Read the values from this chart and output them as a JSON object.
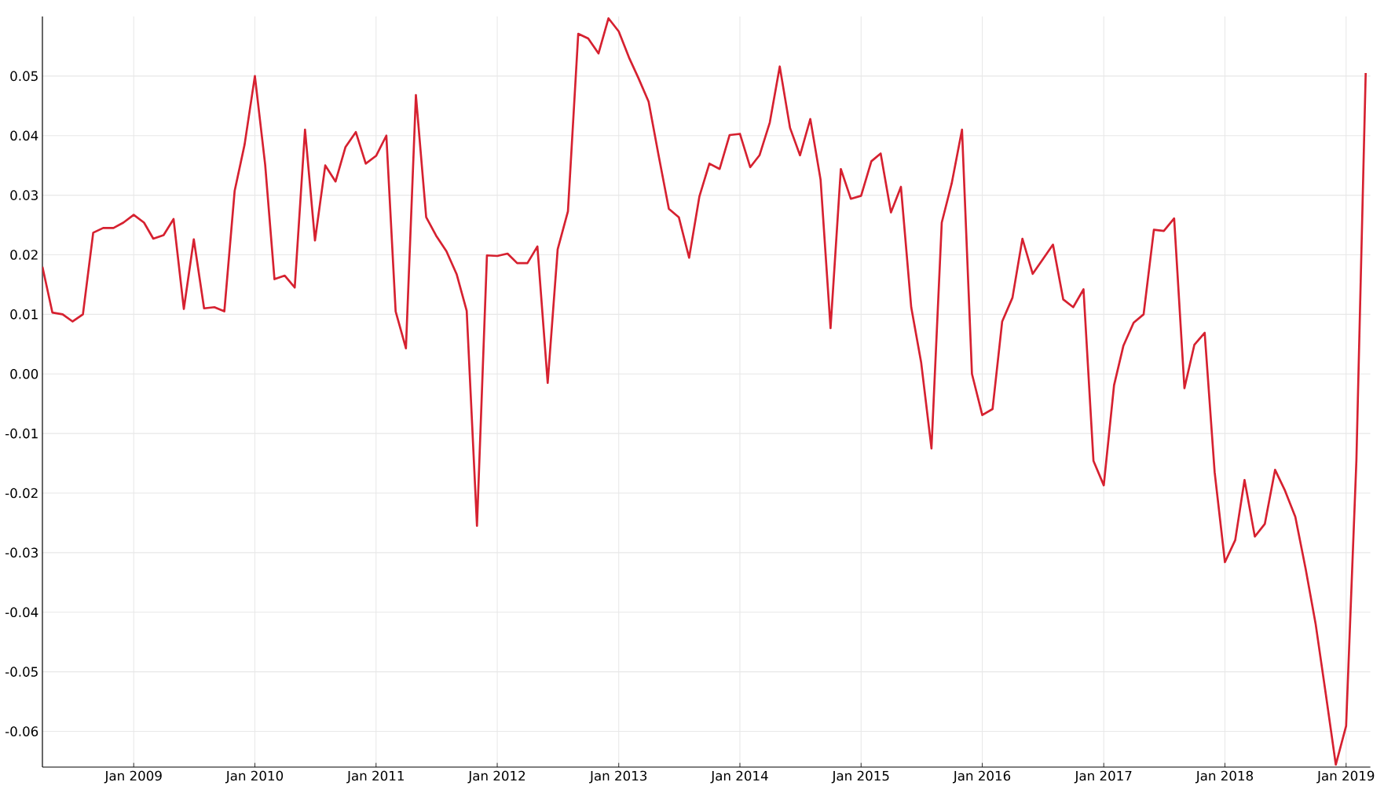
{
  "chart_data": {
    "type": "line",
    "color": "#d62130",
    "grid": true,
    "x": [
      "2008-04",
      "2008-05",
      "2008-06",
      "2008-07",
      "2008-08",
      "2008-09",
      "2008-10",
      "2008-11",
      "2008-12",
      "2009-01",
      "2009-02",
      "2009-03",
      "2009-04",
      "2009-05",
      "2009-06",
      "2009-07",
      "2009-08",
      "2009-09",
      "2009-10",
      "2009-11",
      "2009-12",
      "2010-01",
      "2010-02",
      "2010-03",
      "2010-04",
      "2010-05",
      "2010-06",
      "2010-07",
      "2010-08",
      "2010-09",
      "2010-10",
      "2010-11",
      "2010-12",
      "2011-01",
      "2011-02",
      "2011-03",
      "2011-04",
      "2011-05",
      "2011-06",
      "2011-07",
      "2011-08",
      "2011-09",
      "2011-10",
      "2011-11",
      "2011-12",
      "2012-01",
      "2012-02",
      "2012-03",
      "2012-04",
      "2012-05",
      "2012-06",
      "2012-07",
      "2012-08",
      "2012-09",
      "2012-10",
      "2012-11",
      "2012-12",
      "2013-01",
      "2013-02",
      "2013-03",
      "2013-04",
      "2013-05",
      "2013-06",
      "2013-07",
      "2013-08",
      "2013-09",
      "2013-10",
      "2013-11",
      "2013-12",
      "2014-01",
      "2014-02",
      "2014-03",
      "2014-04",
      "2014-05",
      "2014-06",
      "2014-07",
      "2014-08",
      "2014-09",
      "2014-10",
      "2014-11",
      "2014-12",
      "2015-01",
      "2015-02",
      "2015-03",
      "2015-04",
      "2015-05",
      "2015-06",
      "2015-07",
      "2015-08",
      "2015-09",
      "2015-10",
      "2015-11",
      "2015-12",
      "2016-01",
      "2016-02",
      "2016-03",
      "2016-04",
      "2016-05",
      "2016-06",
      "2016-07",
      "2016-08",
      "2016-09",
      "2016-10",
      "2016-11",
      "2016-12",
      "2017-01",
      "2017-02",
      "2017-03",
      "2017-04",
      "2017-05",
      "2017-06",
      "2017-07",
      "2017-08",
      "2017-09",
      "2017-10",
      "2017-11",
      "2017-12",
      "2018-01",
      "2018-02",
      "2018-03",
      "2018-04",
      "2018-05",
      "2018-06",
      "2018-07",
      "2018-08",
      "2018-09",
      "2018-10",
      "2018-11",
      "2018-12",
      "2019-01",
      "2019-02",
      "2019-03"
    ],
    "values": [
      0.018,
      0.0103,
      0.01,
      0.0088,
      0.01,
      0.0237,
      0.0245,
      0.0245,
      0.0254,
      0.0267,
      0.0254,
      0.0227,
      0.0233,
      0.026,
      0.0109,
      0.0226,
      0.011,
      0.0112,
      0.0105,
      0.0307,
      0.0385,
      0.05,
      0.0351,
      0.0159,
      0.0165,
      0.0145,
      0.041,
      0.0224,
      0.035,
      0.0323,
      0.0381,
      0.0406,
      0.0353,
      0.0366,
      0.04,
      0.0105,
      0.0043,
      0.0468,
      0.0263,
      0.0232,
      0.0206,
      0.0167,
      0.0106,
      -0.0255,
      0.0199,
      0.0198,
      0.0202,
      0.0186,
      0.0186,
      0.0214,
      -0.0015,
      0.0209,
      0.0273,
      0.0571,
      0.0563,
      0.0538,
      0.0597,
      0.0575,
      0.0531,
      0.0497,
      0.0457,
      0.0367,
      0.0277,
      0.0263,
      0.0195,
      0.0298,
      0.0353,
      0.0344,
      0.0401,
      0.0403,
      0.0347,
      0.0367,
      0.0422,
      0.0516,
      0.0413,
      0.0367,
      0.0428,
      0.0326,
      0.0077,
      0.0344,
      0.0294,
      0.0299,
      0.0357,
      0.037,
      0.0271,
      0.0314,
      0.0112,
      0.0019,
      -0.0125,
      0.0254,
      0.032,
      0.041,
      0.0,
      -0.0069,
      -0.0059,
      0.0088,
      0.0128,
      0.0227,
      0.0168,
      0.0192,
      0.0217,
      0.0125,
      0.0112,
      0.0142,
      -0.0146,
      -0.0187,
      -0.0019,
      0.0047,
      0.0086,
      0.01,
      0.0242,
      0.024,
      0.0261,
      -0.0024,
      0.0049,
      0.0069,
      -0.0165,
      -0.0316,
      -0.0279,
      -0.0178,
      -0.0273,
      -0.0252,
      -0.0161,
      -0.0196,
      -0.024,
      -0.0327,
      -0.0419,
      -0.0538,
      -0.0656,
      -0.0591,
      -0.0145,
      0.0505
    ],
    "xlim": [
      "2008-04",
      "2019-03-15"
    ],
    "ylim": [
      -0.066,
      0.06
    ],
    "xticks": [
      {
        "value": "2009-01",
        "label": "Jan 2009"
      },
      {
        "value": "2010-01",
        "label": "Jan 2010"
      },
      {
        "value": "2011-01",
        "label": "Jan 2011"
      },
      {
        "value": "2012-01",
        "label": "Jan 2012"
      },
      {
        "value": "2013-01",
        "label": "Jan 2013"
      },
      {
        "value": "2014-01",
        "label": "Jan 2014"
      },
      {
        "value": "2015-01",
        "label": "Jan 2015"
      },
      {
        "value": "2016-01",
        "label": "Jan 2016"
      },
      {
        "value": "2017-01",
        "label": "Jan 2017"
      },
      {
        "value": "2018-01",
        "label": "Jan 2018"
      },
      {
        "value": "2019-01",
        "label": "Jan 2019"
      }
    ],
    "yticks": [
      {
        "value": -0.06,
        "label": "-0.06"
      },
      {
        "value": -0.05,
        "label": "-0.05"
      },
      {
        "value": -0.04,
        "label": "-0.04"
      },
      {
        "value": -0.03,
        "label": "-0.03"
      },
      {
        "value": -0.02,
        "label": "-0.02"
      },
      {
        "value": -0.01,
        "label": "-0.01"
      },
      {
        "value": 0,
        "label": "0.00"
      },
      {
        "value": 0.01,
        "label": "0.01"
      },
      {
        "value": 0.02,
        "label": "0.02"
      },
      {
        "value": 0.03,
        "label": "0.03"
      },
      {
        "value": 0.04,
        "label": "0.04"
      },
      {
        "value": 0.05,
        "label": "0.05"
      }
    ]
  }
}
